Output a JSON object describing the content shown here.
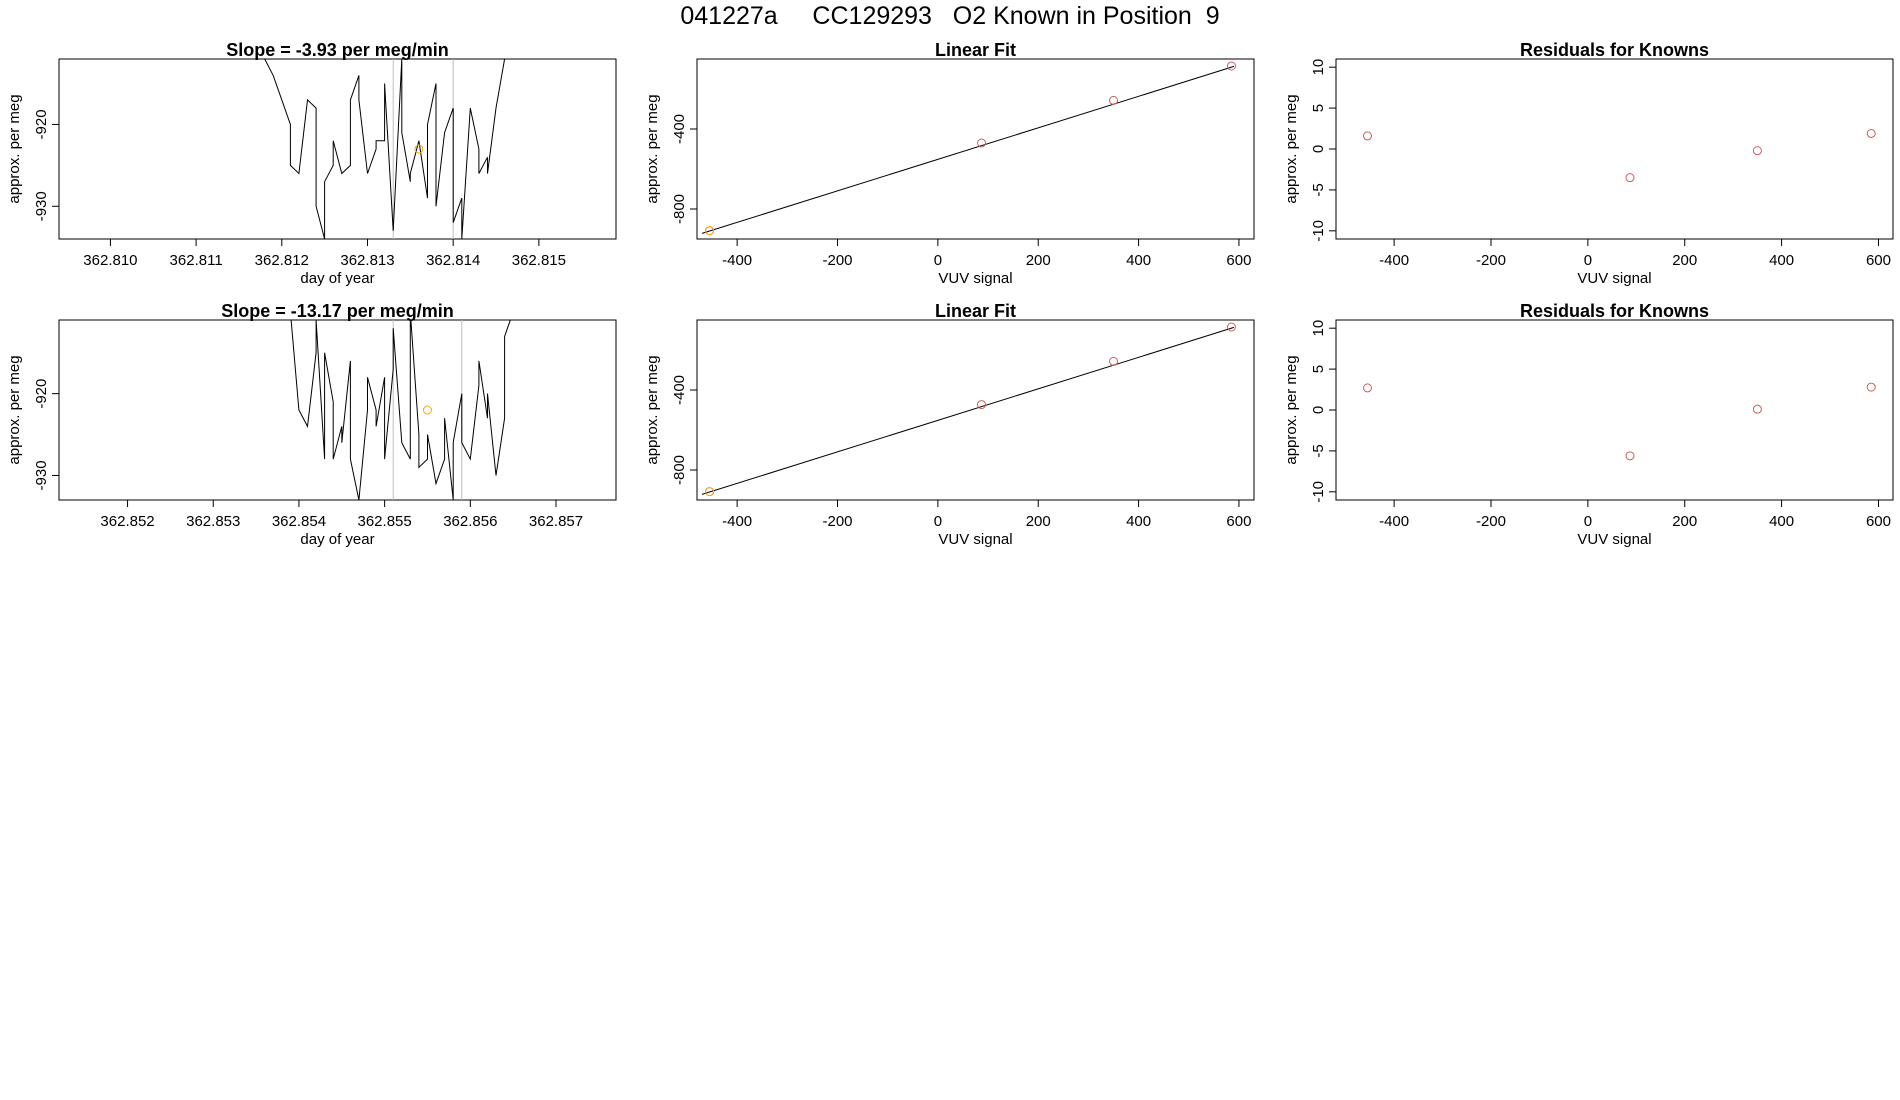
{
  "page": {
    "title": "041227a     CC129293   O2 Known in Position  9"
  },
  "colors": {
    "trace": "#000000",
    "frame": "#000000",
    "vline": "#bebebe",
    "known_point": "#cd5c5c",
    "sample_point": "#ffa500"
  },
  "chart_data": [
    {
      "type": "line",
      "title": "Slope =  -3.93  per meg/min",
      "xlabel": "day of year",
      "ylabel": "approx. per meg",
      "xlim": [
        362.8094,
        362.8159
      ],
      "ylim": [
        -934,
        -912
      ],
      "xticks": [
        362.81,
        362.811,
        362.812,
        362.813,
        362.814,
        362.815
      ],
      "xtick_labels": [
        "362.810",
        "362.811",
        "362.812",
        "362.813",
        "362.814",
        "362.815"
      ],
      "yticks": [
        -930,
        -920
      ],
      "ytick_labels": [
        "-930",
        "-920"
      ],
      "vlines": [
        362.8133,
        362.814
      ],
      "highlight_point": {
        "x": 362.8136,
        "y": -923
      },
      "series": [
        {
          "x": [
            362.8118,
            362.8119,
            362.812,
            362.8121,
            362.8121,
            362.8122,
            362.8123,
            362.8124,
            362.8124,
            362.8125,
            362.8125,
            362.8126,
            362.8126,
            362.8127,
            362.8128,
            362.8128,
            362.8129,
            362.8129,
            362.813,
            362.8131,
            362.8131,
            362.8132,
            362.8132,
            362.8133,
            362.8134,
            362.8134,
            362.8135,
            362.8135,
            362.8136,
            362.8137,
            362.8137,
            362.8138,
            362.8138,
            362.8139,
            362.814,
            362.814,
            362.8141,
            362.8141,
            362.8142,
            362.8143,
            362.8143,
            362.8144,
            362.8144,
            362.8145,
            362.8146,
            362.8147
          ],
          "y": [
            -912,
            -914,
            -917,
            -920,
            -925,
            -926,
            -917,
            -918,
            -930,
            -934,
            -927,
            -925,
            -922,
            -926,
            -925,
            -917,
            -914,
            -917,
            -926,
            -923,
            -922,
            -922,
            -915,
            -933,
            -912,
            -921,
            -927,
            -926,
            -922,
            -929,
            -920,
            -915,
            -930,
            -921,
            -918,
            -932,
            -929,
            -934,
            -918,
            -923,
            -926,
            -924,
            -926,
            -918,
            -912,
            -911
          ]
        }
      ]
    },
    {
      "type": "scatter",
      "title": "Linear Fit",
      "xlabel": "VUV signal",
      "ylabel": "approx. per meg",
      "xlim": [
        -480,
        630
      ],
      "ylim": [
        -950,
        -50
      ],
      "xticks": [
        -400,
        -200,
        0,
        200,
        400,
        600
      ],
      "xtick_labels": [
        "-400",
        "-200",
        "0",
        "200",
        "400",
        "600"
      ],
      "yticks": [
        -800,
        -400
      ],
      "ytick_labels": [
        "-800",
        "-400"
      ],
      "fit_line": {
        "x": [
          -470,
          590
        ],
        "y": [
          -922,
          -87
        ]
      },
      "points": {
        "x": [
          -455,
          87,
          350,
          585
        ],
        "y": [
          -908,
          -470,
          -257,
          -85
        ]
      },
      "sample_point": {
        "x": -455,
        "y": -908
      }
    },
    {
      "type": "scatter",
      "title": "Residuals for Knowns",
      "xlabel": "VUV signal",
      "ylabel": "approx. per meg",
      "xlim": [
        -520,
        630
      ],
      "ylim": [
        -11,
        11
      ],
      "xticks": [
        -400,
        -200,
        0,
        200,
        400,
        600
      ],
      "xtick_labels": [
        "-400",
        "-200",
        "0",
        "200",
        "400",
        "600"
      ],
      "yticks": [
        -10,
        -5,
        0,
        5,
        10
      ],
      "ytick_labels": [
        "-10",
        "-5",
        "0",
        "5",
        "10"
      ],
      "points": {
        "x": [
          -455,
          87,
          350,
          585
        ],
        "y": [
          1.6,
          -3.5,
          -0.2,
          1.9
        ]
      }
    },
    {
      "type": "line",
      "title": "Slope =  -13.17  per meg/min",
      "xlabel": "day of year",
      "ylabel": "approx. per meg",
      "xlim": [
        362.8512,
        362.8577
      ],
      "ylim": [
        -933,
        -911
      ],
      "xticks": [
        362.852,
        362.853,
        362.854,
        362.855,
        362.856,
        362.857
      ],
      "xtick_labels": [
        "362.852",
        "362.853",
        "362.854",
        "362.855",
        "362.856",
        "362.857"
      ],
      "vlines": [
        362.8551,
        362.8559
      ],
      "yticks": [
        -930,
        -920
      ],
      "ytick_labels": [
        "-930",
        "-920"
      ],
      "highlight_point": {
        "x": 362.8555,
        "y": -922
      },
      "series": [
        {
          "x": [
            362.8539,
            362.854,
            362.8541,
            362.8542,
            362.8542,
            362.8543,
            362.8543,
            362.8544,
            362.8544,
            362.8545,
            362.8545,
            362.8546,
            362.8546,
            362.8547,
            362.8548,
            362.8548,
            362.8549,
            362.8549,
            362.855,
            362.855,
            362.8551,
            362.8551,
            362.8552,
            362.8553,
            362.8553,
            362.8554,
            362.8554,
            362.8555,
            362.8555,
            362.8556,
            362.8557,
            362.8557,
            362.8558,
            362.8558,
            362.8559,
            362.8559,
            362.856,
            362.8561,
            362.8561,
            362.8562,
            362.8562,
            362.8563,
            362.8564,
            362.8564,
            362.8565
          ],
          "y": [
            -910,
            -922,
            -924,
            -915,
            -911,
            -928,
            -915,
            -921,
            -928,
            -924,
            -926,
            -916,
            -928,
            -933,
            -922,
            -918,
            -922,
            -924,
            -918,
            -928,
            -917,
            -912,
            -926,
            -928,
            -910,
            -925,
            -929,
            -928,
            -925,
            -931,
            -928,
            -923,
            -933,
            -926,
            -920,
            -926,
            -928,
            -919,
            -916,
            -923,
            -920,
            -930,
            -923,
            -913,
            -910
          ]
        }
      ]
    },
    {
      "type": "scatter",
      "title": "Linear Fit",
      "xlabel": "VUV signal",
      "ylabel": "approx. per meg",
      "xlim": [
        -480,
        630
      ],
      "ylim": [
        -950,
        -50
      ],
      "xticks": [
        -400,
        -200,
        0,
        200,
        400,
        600
      ],
      "xtick_labels": [
        "-400",
        "-200",
        "0",
        "200",
        "400",
        "600"
      ],
      "yticks": [
        -800,
        -400
      ],
      "ytick_labels": [
        "-800",
        "-400"
      ],
      "fit_line": {
        "x": [
          -470,
          590
        ],
        "y": [
          -922,
          -87
        ]
      },
      "points": {
        "x": [
          -455,
          87,
          350,
          585
        ],
        "y": [
          -908,
          -473,
          -257,
          -85
        ]
      },
      "sample_point": {
        "x": -455,
        "y": -908
      }
    },
    {
      "type": "scatter",
      "title": "Residuals for Knowns",
      "xlabel": "VUV signal",
      "ylabel": "approx. per meg",
      "xlim": [
        -520,
        630
      ],
      "ylim": [
        -11,
        11
      ],
      "xticks": [
        -400,
        -200,
        0,
        200,
        400,
        600
      ],
      "xtick_labels": [
        "-400",
        "-200",
        "0",
        "200",
        "400",
        "600"
      ],
      "yticks": [
        -10,
        -5,
        0,
        5,
        10
      ],
      "ytick_labels": [
        "-10",
        "-5",
        "0",
        "5",
        "10"
      ],
      "points": {
        "x": [
          -455,
          87,
          350,
          585
        ],
        "y": [
          2.7,
          -5.6,
          0.1,
          2.8
        ]
      }
    }
  ]
}
